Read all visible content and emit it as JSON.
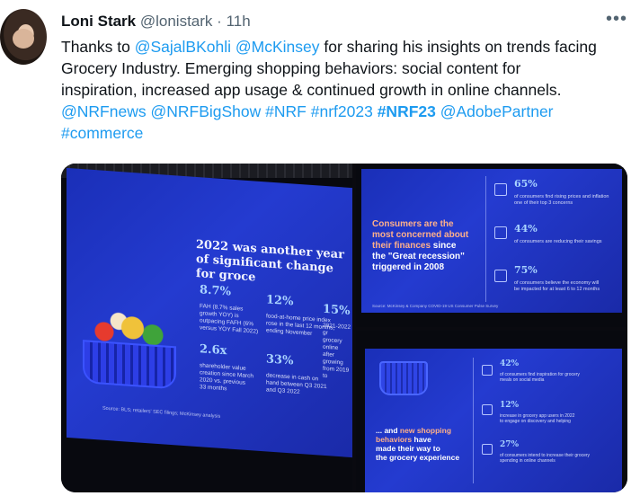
{
  "tweet": {
    "name": "Loni Stark",
    "handle": "@lonistark",
    "separator": "·",
    "time": "11h",
    "more_icon": "more-horizontal-icon",
    "text_lines": [
      [
        {
          "t": "Thanks to "
        },
        {
          "t": "@SajalBKohli",
          "link": true
        },
        {
          "t": " "
        },
        {
          "t": "@McKinsey",
          "link": true
        },
        {
          "t": " for sharing his insights on trends facing"
        }
      ],
      [
        {
          "t": "Grocery Industry. Emerging shopping behaviors: social content for"
        }
      ],
      [
        {
          "t": "inspiration, increased app usage & continued growth in online channels."
        }
      ],
      [
        {
          "t": "@NRFnews",
          "link": true
        },
        {
          "t": " "
        },
        {
          "t": "@NRFBigShow",
          "link": true
        },
        {
          "t": " "
        },
        {
          "t": "#NRF",
          "link": true
        },
        {
          "t": " "
        },
        {
          "t": "#nrf2023",
          "link": true
        },
        {
          "t": " "
        },
        {
          "t": "#NRF23",
          "link": true,
          "bold": true
        },
        {
          "t": " "
        },
        {
          "t": "@AdobePartner",
          "link": true
        }
      ],
      [
        {
          "t": "#commerce",
          "link": true
        }
      ]
    ]
  },
  "slide1": {
    "headline": "2022 was another year\nof significant change for groce",
    "stats": [
      {
        "value": "8.7%",
        "desc": "FAH (8.7% sales\ngrowth YOY) is\noutpacing FAFH (6%\nversus YOY Fall 2022)"
      },
      {
        "value": "12%",
        "desc": "food-at-home price index\nrose in the last 12 months,\nending November"
      },
      {
        "value": "15%",
        "desc": "2021-2022 gr\ngrocery online\nafter growing\nfrom 2019 to"
      },
      {
        "value": "2.6x",
        "desc": "shareholder value\ncreation since March\n2020 vs. previous\n33 months"
      },
      {
        "value": "33%",
        "desc": "decrease in cash on\nhand between Q3 2021\nand Q3 2022"
      }
    ],
    "source": "Source: BLS; retailers' SEC filings; McKinsey analysis"
  },
  "slide2": {
    "headline_a": "Consumers are the\nmost concerned about\ntheir finances",
    "headline_b": " since\nthe \"Great recession\"\ntriggered in 2008",
    "stats": [
      {
        "value": "65%",
        "desc": "of consumers find rising prices and inflation\none of their top 3 concerns"
      },
      {
        "value": "44%",
        "desc": "of consumers are reducing their savings"
      },
      {
        "value": "75%",
        "desc": "of consumers believe the economy will\nbe impacted for at least 6 to 12 months"
      }
    ],
    "source": "Source: McKinsey & Company COVID-19 US Consumer Pulse Survey"
  },
  "slide3": {
    "headline_a": "... and ",
    "headline_b": "new shopping\nbehaviors",
    "headline_c": " have\nmade their way to\nthe grocery experience",
    "stats": [
      {
        "value": "42%",
        "desc": "of consumers find inspiration for grocery\nmeals on social media"
      },
      {
        "value": "12%",
        "desc": "increase in grocery app users in 2022\nto engage on discovery and helping"
      },
      {
        "value": "27%",
        "desc": "of consumers intend to increase their grocery\nspending in online channels"
      }
    ]
  }
}
